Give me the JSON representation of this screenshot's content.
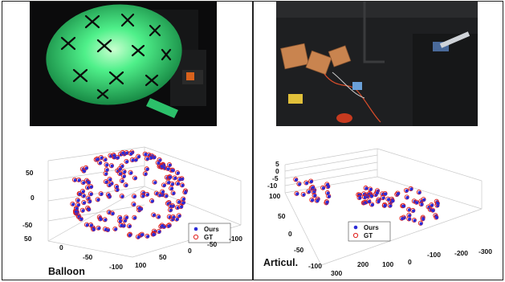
{
  "panels": {
    "left": {
      "caption": "Balloon",
      "legend": [
        "Ours",
        "GT"
      ],
      "photo_icon": "balloon-photo",
      "axes": {
        "vertical_ticks": [
          "50",
          "0",
          "-50"
        ],
        "left_depth_ticks": [
          "50",
          "0",
          "-50",
          "-100"
        ],
        "right_depth_ticks": [
          "100",
          "50",
          "0",
          "-50",
          "-100"
        ]
      }
    },
    "right": {
      "caption": "Articul.",
      "legend": [
        "Ours",
        "GT"
      ],
      "photo_icon": "articulated-object-photo",
      "axes": {
        "vertical_ticks": [
          "5",
          "0",
          "-5",
          "-10"
        ],
        "left_depth_ticks": [
          "100",
          "50",
          "0",
          "-50",
          "-100"
        ],
        "right_depth_ticks": [
          "300",
          "200",
          "100",
          "0",
          "-100",
          "-200",
          "-300"
        ]
      }
    }
  },
  "colors": {
    "ours": "#2b2bd6",
    "gt": "#e0201b",
    "balloon": "#32e07a"
  }
}
